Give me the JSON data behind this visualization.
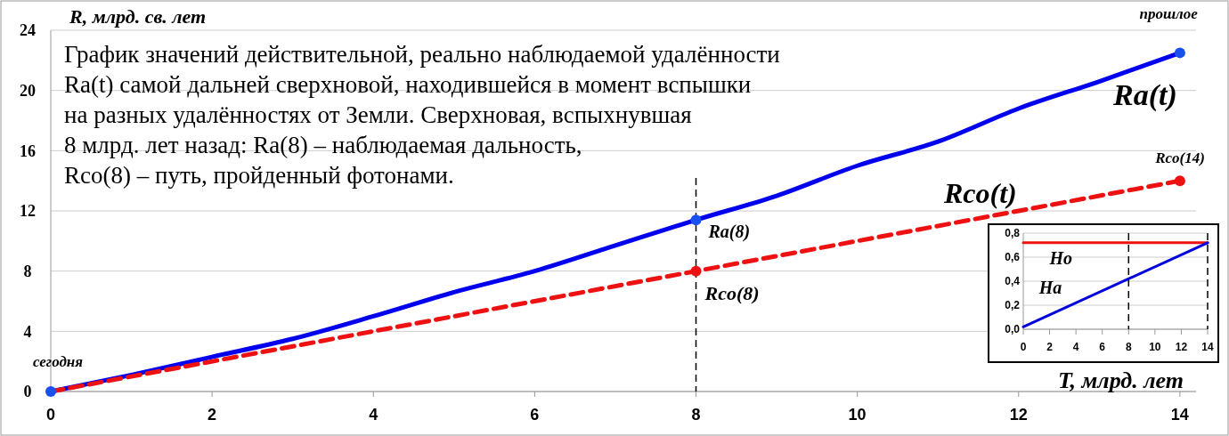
{
  "chart_data": [
    {
      "type": "line",
      "ylabel": "R, млрд. св. лет",
      "xlim": [
        0,
        14.2
      ],
      "ylim": [
        0,
        24
      ],
      "xticks": [
        0,
        2,
        4,
        6,
        8,
        10,
        12,
        14
      ],
      "yticks": [
        0,
        4,
        8,
        12,
        16,
        20,
        24
      ],
      "grid": "y",
      "series": [
        {
          "name": "Ra(t)",
          "color": "#0000ee",
          "x": [
            0,
            1,
            2,
            3,
            4,
            5,
            6,
            7,
            8,
            9,
            10,
            11,
            12,
            13,
            14
          ],
          "values": [
            0,
            1.1,
            2.3,
            3.5,
            5,
            6.6,
            8,
            9.7,
            11.4,
            13,
            15,
            16.6,
            18.8,
            20.6,
            22.5
          ]
        },
        {
          "name": "Rco(t)",
          "color": "#ee1111",
          "line_style": "dashed",
          "x": [
            0,
            14
          ],
          "values": [
            0,
            14
          ]
        },
        {
          "type": "scatter",
          "color": "#1a4ff0",
          "marker": "circle",
          "x": [
            0,
            8,
            14
          ],
          "values": [
            0,
            11.4,
            22.5
          ]
        },
        {
          "type": "scatter",
          "color": "#ee1111",
          "marker": "circle",
          "x": [
            8,
            14
          ],
          "values": [
            8,
            14
          ]
        }
      ],
      "ref_lines": [
        {
          "axis": "x",
          "value": 8,
          "color": "#000000",
          "line_style": "dashed"
        }
      ],
      "annotations": [
        "График значений действительной, реально наблюдаемой удалённости\nRa(t) самой дальней сверхновой, находившейся в момент вспышки\nна разных удалённостях от Земли. Сверхновая, вспыхнувшая\n8 млрд. лет назад: Ra(8) – наблюдаемая дальность,\nRco(8) – путь, пройденный фотонами.",
        {
          "text": "сегодня",
          "x": 0,
          "y": 0
        },
        {
          "text": "прошлое",
          "x": 14,
          "y": 22.5
        },
        {
          "text": "Ra(8)",
          "x": 8,
          "y": 11.4
        },
        {
          "text": "Rco(8)",
          "x": 8,
          "y": 8
        },
        {
          "text": "Rco(14)",
          "x": 14,
          "y": 14
        }
      ]
    },
    {
      "type": "line",
      "xlabel": "T, млрд. лет",
      "xlim": [
        0,
        14
      ],
      "ylim": [
        0,
        0.8
      ],
      "xticks": [
        0,
        2,
        4,
        6,
        8,
        10,
        12,
        14
      ],
      "yticks": [
        {
          "value": 0,
          "label": "0,0"
        },
        {
          "value": 0.2,
          "label": "0,2"
        },
        {
          "value": 0.4,
          "label": "0,4"
        },
        {
          "value": 0.6,
          "label": "0,6"
        },
        {
          "value": 0.8,
          "label": "0,8"
        }
      ],
      "grid": "y",
      "series": [
        {
          "name": "Ho",
          "color": "#ee1111",
          "x": [
            0,
            14
          ],
          "values": [
            0.72,
            0.72
          ]
        },
        {
          "name": "Ha",
          "color": "#0000dd",
          "x": [
            0,
            14
          ],
          "values": [
            0.02,
            0.72
          ]
        }
      ],
      "ref_lines": [
        {
          "axis": "x",
          "value": 8,
          "color": "#000000",
          "line_style": "dashed"
        },
        {
          "axis": "x",
          "value": 14,
          "color": "#000000",
          "line_style": "dashed"
        }
      ]
    }
  ]
}
